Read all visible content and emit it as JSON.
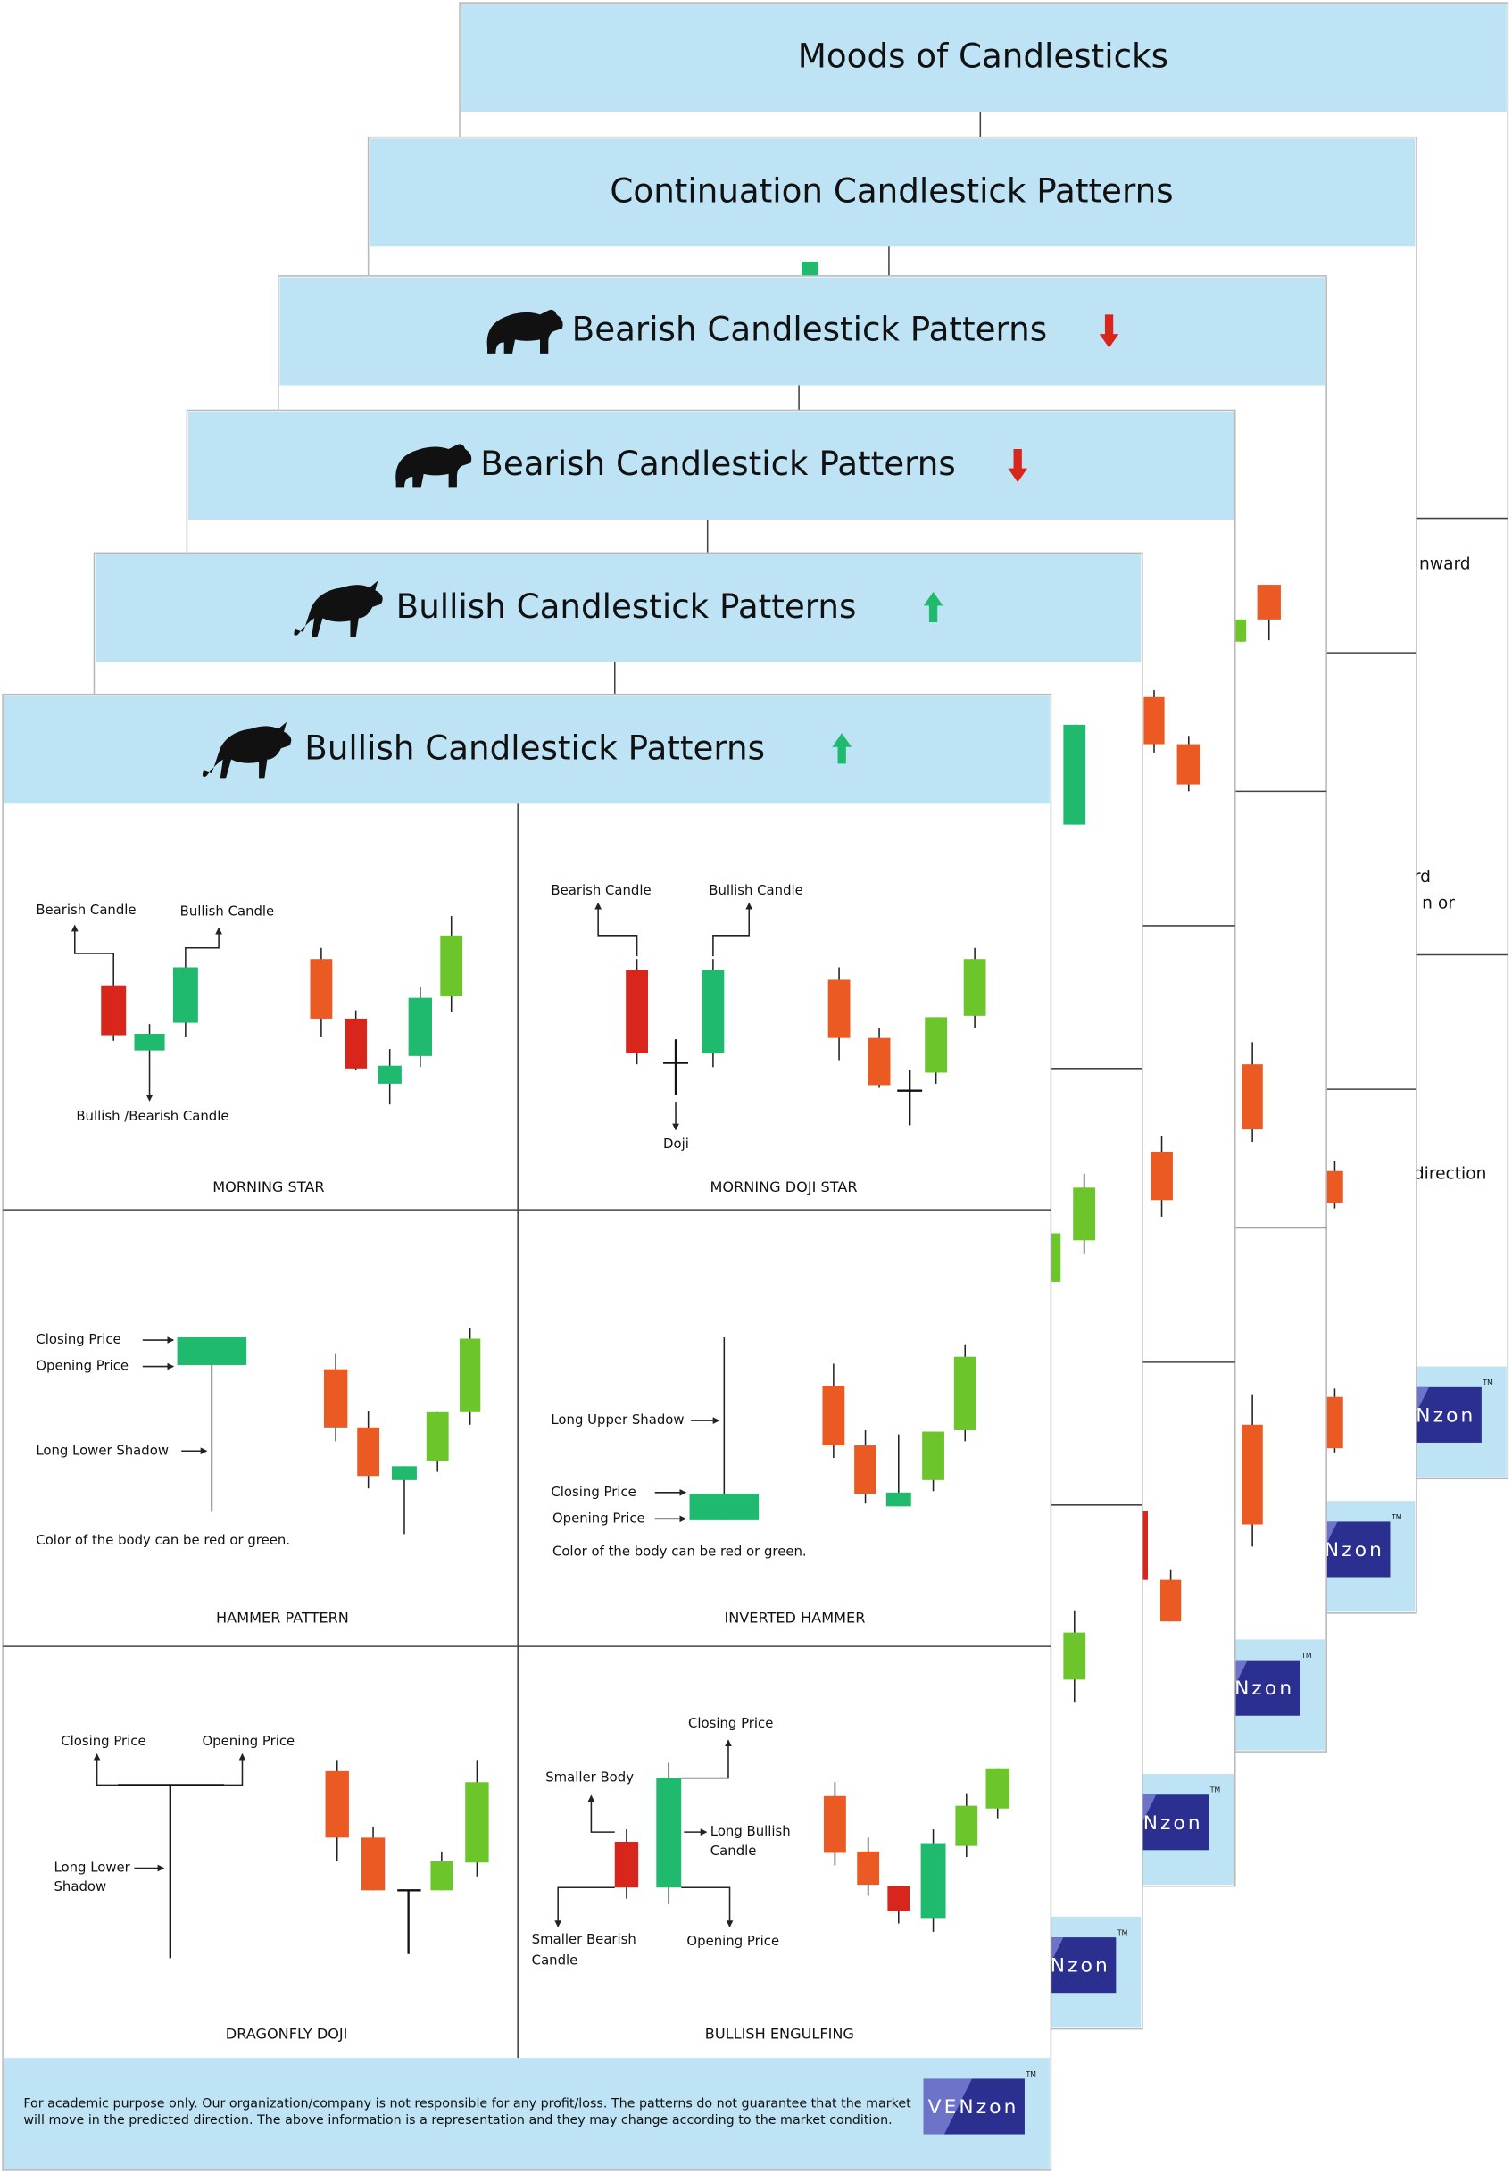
{
  "back_posters": [
    {
      "title": "Moods of Candlesticks",
      "fragments": [
        "nward",
        "rd",
        "n or",
        "direction"
      ]
    },
    {
      "title": "Continuation Candlestick Patterns"
    },
    {
      "title": "Bearish Candlestick Patterns"
    },
    {
      "title": "Bearish Candlestick Patterns"
    },
    {
      "title": "Bullish Candlestick Patterns"
    }
  ],
  "poster": {
    "title": "Bullish Candlestick Patterns",
    "panels": [
      {
        "name": "MORNING STAR",
        "labels": [
          "Bearish Candle",
          "Bullish Candle",
          "Bullish /Bearish Candle"
        ]
      },
      {
        "name": "MORNING DOJI STAR",
        "labels": [
          "Bearish Candle",
          "Bullish Candle",
          "Doji"
        ]
      },
      {
        "name": "HAMMER PATTERN",
        "labels": [
          "Closing Price",
          "Opening Price",
          "Long Lower Shadow",
          "Color of the body can be red or green."
        ]
      },
      {
        "name": "INVERTED HAMMER",
        "labels": [
          "Long Upper Shadow",
          "Closing Price",
          "Opening Price",
          "Color of the body can be red or green."
        ]
      },
      {
        "name": "DRAGONFLY DOJI",
        "labels": [
          "Closing Price",
          "Opening Price",
          "Long Lower",
          "Shadow"
        ]
      },
      {
        "name": "BULLISH ENGULFING",
        "labels": [
          "Closing Price",
          "Smaller Body",
          "Long Bullish",
          "Candle",
          "Smaller Bearish",
          "Candle",
          "Opening Price"
        ]
      }
    ],
    "disclaimer": [
      "For academic purpose only. Our organization/company is not responsible for any profit/loss. The patterns do not guarantee that the market",
      "will move in the predicted direction. The above information is a representation and they may change according to the market condition."
    ],
    "logo": "VENzon",
    "trademark": "TM"
  }
}
